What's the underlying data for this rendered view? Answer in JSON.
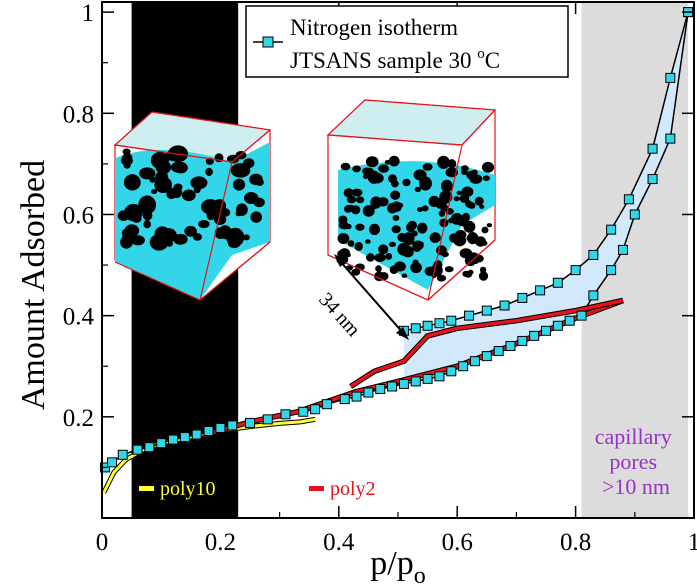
{
  "chart_data": {
    "type": "line",
    "title": "",
    "xlabel": "p/p",
    "xlabel_sub": "o",
    "ylabel": "Amount Adsorbed",
    "xlim": [
      0,
      1
    ],
    "ylim": [
      0,
      1.02
    ],
    "x_ticks": [
      0,
      0.2,
      0.4,
      0.6,
      0.8,
      1
    ],
    "x_tick_labels": [
      "0",
      "0.2",
      "0.4",
      "0.6",
      "0.8",
      "1"
    ],
    "y_ticks": [
      0.2,
      0.4,
      0.6,
      0.8,
      1
    ],
    "y_tick_labels": [
      "0.2",
      "0.4",
      "0.6",
      "0.8",
      "1"
    ],
    "legend": {
      "position": "top-center",
      "line1": "Nitrogen isotherm",
      "line2": "JTSANS sample 30 ",
      "degree": "o",
      "unit": "C"
    },
    "bands": [
      {
        "x0": 0.05,
        "x1": 0.23,
        "color": "#000000"
      },
      {
        "x0": 0.81,
        "x1": 0.99,
        "color": "#dcdcdc"
      }
    ],
    "series": [
      {
        "name": "Nitrogen isotherm JTSANS sample 30 oC",
        "role": "adsorption",
        "color": "#000000",
        "marker_color": "#33d6e8",
        "x": [
          0.005,
          0.017,
          0.035,
          0.06,
          0.08,
          0.1,
          0.12,
          0.14,
          0.16,
          0.18,
          0.2,
          0.22,
          0.25,
          0.28,
          0.31,
          0.34,
          0.36,
          0.38,
          0.41,
          0.43,
          0.45,
          0.47,
          0.49,
          0.51,
          0.53,
          0.55,
          0.57,
          0.59,
          0.61,
          0.63,
          0.65,
          0.67,
          0.69,
          0.71,
          0.73,
          0.75,
          0.77,
          0.79,
          0.81,
          0.83,
          0.86,
          0.88,
          0.9,
          0.93,
          0.96,
          0.99
        ],
        "y": [
          0.1,
          0.11,
          0.125,
          0.135,
          0.14,
          0.148,
          0.155,
          0.16,
          0.165,
          0.172,
          0.178,
          0.183,
          0.188,
          0.195,
          0.205,
          0.21,
          0.215,
          0.225,
          0.235,
          0.24,
          0.248,
          0.255,
          0.26,
          0.265,
          0.27,
          0.275,
          0.28,
          0.29,
          0.3,
          0.31,
          0.32,
          0.33,
          0.34,
          0.35,
          0.36,
          0.37,
          0.38,
          0.39,
          0.4,
          0.44,
          0.49,
          0.53,
          0.6,
          0.67,
          0.75,
          1.0
        ]
      },
      {
        "name": "",
        "role": "desorption",
        "color": "#000000",
        "marker_color": "#33d6e8",
        "x": [
          0.99,
          0.96,
          0.93,
          0.89,
          0.86,
          0.83,
          0.8,
          0.77,
          0.74,
          0.71,
          0.68,
          0.65,
          0.62,
          0.59,
          0.57,
          0.55,
          0.53,
          0.51
        ],
        "y": [
          1.0,
          0.87,
          0.73,
          0.63,
          0.57,
          0.52,
          0.49,
          0.465,
          0.45,
          0.435,
          0.42,
          0.41,
          0.4,
          0.39,
          0.385,
          0.38,
          0.375,
          0.37
        ]
      },
      {
        "name": "poly10",
        "role": "fit",
        "color": "#ffff33",
        "x": [
          0.003,
          0.02,
          0.04,
          0.07,
          0.1,
          0.14,
          0.18,
          0.22,
          0.26,
          0.3,
          0.335,
          0.36
        ],
        "y": [
          0.05,
          0.09,
          0.115,
          0.135,
          0.148,
          0.158,
          0.168,
          0.176,
          0.182,
          0.187,
          0.19,
          0.195
        ]
      },
      {
        "name": "poly2",
        "role": "fit-lower",
        "color": "#e3141c",
        "x": [
          0.17,
          0.25,
          0.33,
          0.38,
          0.43,
          0.5,
          0.6,
          0.7,
          0.8,
          0.88
        ],
        "y": [
          0.163,
          0.19,
          0.21,
          0.23,
          0.25,
          0.27,
          0.3,
          0.345,
          0.395,
          0.43
        ]
      },
      {
        "name": "",
        "role": "fit-upper",
        "color": "#e3141c",
        "x": [
          0.42,
          0.46,
          0.51,
          0.55,
          0.6,
          0.7,
          0.8,
          0.88
        ],
        "y": [
          0.26,
          0.29,
          0.31,
          0.36,
          0.375,
          0.39,
          0.41,
          0.43
        ]
      }
    ],
    "fit_labels": [
      {
        "name": "poly10",
        "color": "#ffff33",
        "text_color": "#ffff33"
      },
      {
        "name": "poly2",
        "color": "#e3141c",
        "text_color": "#e3141c"
      }
    ],
    "annotations": {
      "scale_label": "34 nm",
      "capillary_line1": "capillary",
      "capillary_line2": "pores",
      "capillary_line3": ">10 nm",
      "capillary_color": "#9b30c8"
    },
    "colors": {
      "hysteresis_fill": "#d2e8fb",
      "liquid": "#33d6e8",
      "box_edge": "#e3141c"
    }
  }
}
